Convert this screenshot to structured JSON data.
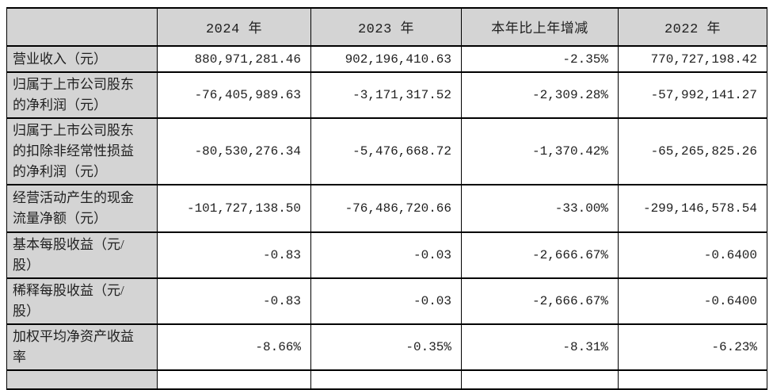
{
  "page": {
    "background": "#ffffff"
  },
  "table": {
    "style": {
      "header_fill": "#d4d4d4",
      "label_fill": "#d4d4d4",
      "cell_fill": "#ffffff",
      "border_color": "#000000",
      "text_color": "#1f1f1f"
    },
    "columns": [
      "",
      "2024 年",
      "2023 年",
      "本年比上年增减",
      "2022 年"
    ],
    "rows": [
      {
        "label": "营业收入（元）",
        "values": [
          "880,971,281.46",
          "902,196,410.63",
          "-2.35%",
          "770,727,198.42"
        ]
      },
      {
        "label": "归属于上市公司股东\n的净利润（元）",
        "values": [
          "-76,405,989.63",
          "-3,171,317.52",
          "-2,309.28%",
          "-57,992,141.27"
        ]
      },
      {
        "label": "归属于上市公司股东\n的扣除非经常性损益\n的净利润（元）",
        "values": [
          "-80,530,276.34",
          "-5,476,668.72",
          "-1,370.42%",
          "-65,265,825.26"
        ]
      },
      {
        "label": "经营活动产生的现金\n流量净额（元）",
        "values": [
          "-101,727,138.50",
          "-76,486,720.66",
          "-33.00%",
          "-299,146,578.54"
        ]
      },
      {
        "label": "基本每股收益（元/\n股）",
        "values": [
          "-0.83",
          "-0.03",
          "-2,666.67%",
          "-0.6400"
        ]
      },
      {
        "label": "稀释每股收益（元/\n股）",
        "values": [
          "-0.83",
          "-0.03",
          "-2,666.67%",
          "-0.6400"
        ]
      },
      {
        "label": "加权平均净资产收益\n率",
        "values": [
          "-8.66%",
          "-0.35%",
          "-8.31%",
          "-6.23%"
        ]
      }
    ]
  }
}
